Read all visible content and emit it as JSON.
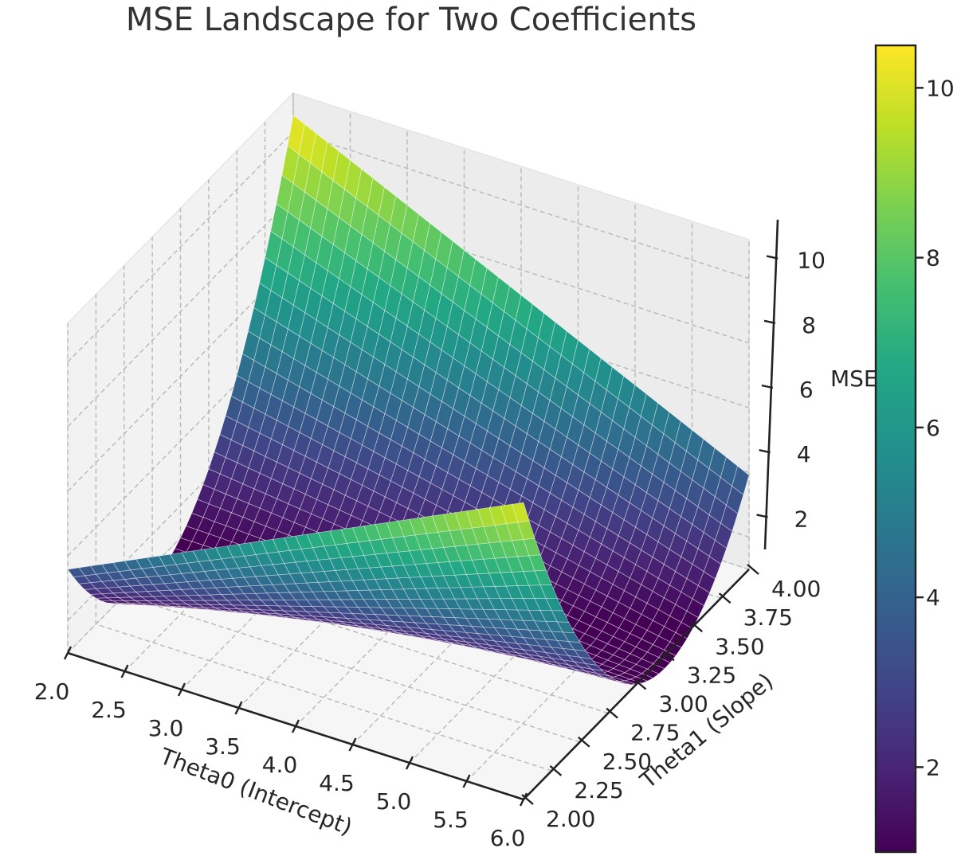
{
  "chart_data": {
    "type": "surface",
    "title": "MSE Landscape for Two Coefficients",
    "xlabel": "Theta0 (Intercept)",
    "ylabel": "Theta1 (Slope)",
    "zlabel": "MSE",
    "xlim": [
      2.0,
      6.0
    ],
    "ylim": [
      2.0,
      4.0
    ],
    "zlim": [
      1.0,
      10.5
    ],
    "x_ticks": [
      "2.0",
      "2.5",
      "3.0",
      "3.5",
      "4.0",
      "4.5",
      "5.0",
      "5.5",
      "6.0"
    ],
    "y_ticks": [
      "2.00",
      "2.25",
      "2.50",
      "2.75",
      "3.00",
      "3.25",
      "3.50",
      "3.75",
      "4.00"
    ],
    "z_ticks": [
      "2",
      "4",
      "6",
      "8",
      "10"
    ],
    "colormap": "viridis",
    "colorbar": {
      "ticks": [
        "2",
        "4",
        "6",
        "8",
        "10"
      ],
      "range": [
        1.0,
        10.5
      ]
    },
    "grid": true,
    "surface": {
      "description": "quadratic bowl in theta0 and theta1",
      "corner_values": [
        {
          "theta0": 2.0,
          "theta1": 4.0,
          "mse": 10.5
        },
        {
          "theta0": 6.0,
          "theta1": 4.0,
          "mse": 3.9
        },
        {
          "theta0": 6.0,
          "theta1": 2.0,
          "mse": 10.2
        },
        {
          "theta0": 2.0,
          "theta1": 2.0,
          "mse": 3.6
        }
      ],
      "minimum": {
        "theta0": 4.1,
        "theta1": 3.0,
        "mse": 1.0
      }
    }
  }
}
